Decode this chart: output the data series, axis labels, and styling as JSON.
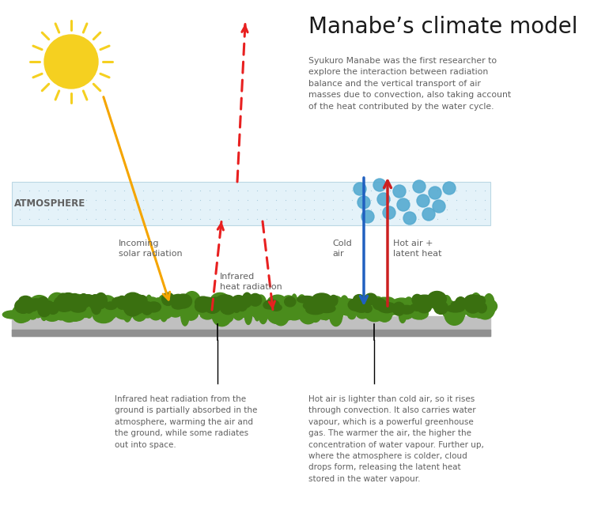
{
  "title": "Manabe’s climate model",
  "subtitle": "Syukuro Manabe was the first researcher to\nexplore the interaction between radiation\nbalance and the vertical transport of air\nmasses due to convection, also taking account\nof the heat contributed by the water cycle.",
  "atmosphere_label": "ATMOSPHERE",
  "label_solar": "Incoming\nsolar radiation",
  "label_infrared": "Infrared\nheat radiation",
  "label_cold": "Cold\nair",
  "label_hot": "Hot air +\nlatent heat",
  "caption_left": "Infrared heat radiation from the\nground is partially absorbed in the\natmosphere, warming the air and\nthe ground, while some radiates\nout into space.",
  "caption_right": "Hot air is lighter than cold air, so it rises\nthrough convection. It also carries water\nvapour, which is a powerful greenhouse\ngas. The warmer the air, the higher the\nconcentration of water vapour. Further up,\nwhere the atmosphere is colder, cloud\ndrops form, releasing the latent heat\nstored in the water vapour.",
  "bg_color": "#ffffff",
  "atm_fill_color": "#dceef7",
  "atm_dot_color": "#a8ccdc",
  "ground_top_color": "#c0c0c0",
  "ground_bot_color": "#909090",
  "grass_color1": "#4a8c1c",
  "grass_color2": "#3a7010",
  "sun_color": "#f5d020",
  "solar_arrow_color": "#f5a500",
  "infrared_color": "#e82020",
  "cold_air_color": "#2060c0",
  "hot_air_color": "#cc2020",
  "text_color": "#606060",
  "title_color": "#1a1a1a",
  "atm_label_color": "#606060",
  "water_dot_color": "#55aad0"
}
